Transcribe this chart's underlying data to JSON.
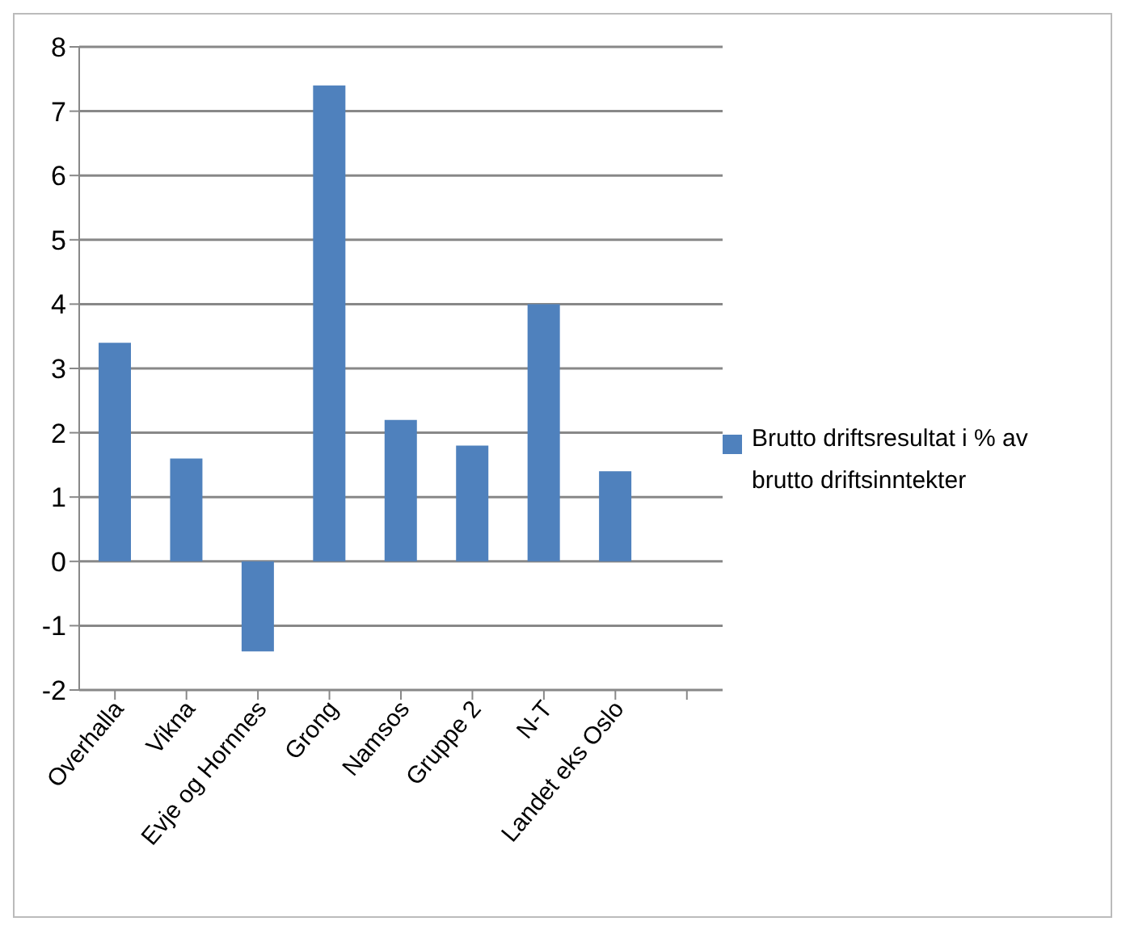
{
  "chart_data": {
    "type": "bar",
    "categories": [
      "Overhalla",
      "Vikna",
      "Evje og Hornnes",
      "Grong",
      "Namsos",
      "Gruppe 2",
      "N-T",
      "Landet eks Oslo",
      null
    ],
    "series": [
      {
        "name": "Brutto driftsresultat i % av brutto driftsinntekter",
        "color": "#4f81bd",
        "values": [
          3.4,
          1.6,
          -1.4,
          7.4,
          2.2,
          1.8,
          4.0,
          1.4,
          null
        ]
      }
    ],
    "ylim": [
      -2,
      8
    ],
    "yticks": [
      -2,
      -1,
      0,
      1,
      2,
      3,
      4,
      5,
      6,
      7,
      8
    ],
    "grid": "y",
    "legend": "right"
  }
}
